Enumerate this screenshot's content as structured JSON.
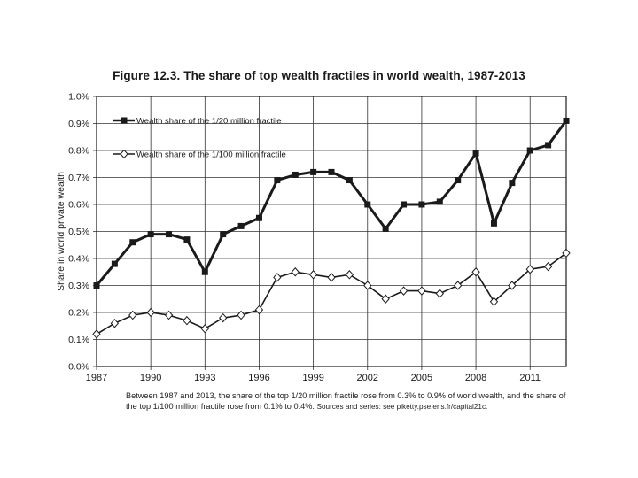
{
  "chart_data": {
    "type": "line",
    "title": "Figure 12.3. The share of top wealth fractiles in world wealth, 1987-2013",
    "xlabel": "",
    "ylabel": "Share in world private wealth",
    "x": [
      1987,
      1988,
      1989,
      1990,
      1991,
      1992,
      1993,
      1994,
      1995,
      1996,
      1997,
      1998,
      1999,
      2000,
      2001,
      2002,
      2003,
      2004,
      2005,
      2006,
      2007,
      2008,
      2009,
      2010,
      2011,
      2012,
      2013
    ],
    "xticks": [
      1987,
      1990,
      1993,
      1996,
      1999,
      2002,
      2005,
      2008,
      2011
    ],
    "xtick_labels": [
      "1987",
      "1990",
      "1993",
      "1996",
      "1999",
      "2002",
      "2005",
      "2008",
      "2011"
    ],
    "xlim": [
      1987,
      2013
    ],
    "ylim": [
      0,
      1.0
    ],
    "yticks": [
      0,
      0.1,
      0.2,
      0.3,
      0.4,
      0.5,
      0.6,
      0.7,
      0.8,
      0.9,
      1.0
    ],
    "ytick_labels": [
      "0.0%",
      "0.1%",
      "0.2%",
      "0.3%",
      "0.4%",
      "0.5%",
      "0.6%",
      "0.7%",
      "0.8%",
      "0.9%",
      "1.0%"
    ],
    "grid": true,
    "legend_position": "top-left",
    "series": [
      {
        "name": "Wealth share of the 1/20 million fractile",
        "marker": "square",
        "color": "#1a1a1a",
        "values": [
          0.3,
          0.38,
          0.46,
          0.49,
          0.49,
          0.47,
          0.35,
          0.49,
          0.52,
          0.55,
          0.69,
          0.71,
          0.72,
          0.72,
          0.69,
          0.6,
          0.51,
          0.6,
          0.6,
          0.61,
          0.69,
          0.79,
          0.53,
          0.68,
          0.8,
          0.82,
          0.91
        ]
      },
      {
        "name": "Wealth share of the 1/100 million fractile",
        "marker": "diamond",
        "color": "#1a1a1a",
        "values": [
          0.12,
          0.16,
          0.19,
          0.2,
          0.19,
          0.17,
          0.14,
          0.18,
          0.19,
          0.21,
          0.33,
          0.35,
          0.34,
          0.33,
          0.34,
          0.3,
          0.25,
          0.28,
          0.28,
          0.27,
          0.3,
          0.35,
          0.24,
          0.3,
          0.36,
          0.37,
          0.42
        ]
      }
    ],
    "caption": "Between 1987 and 2013, the share of the top 1/20 million fractile rose from 0.3% to 0.9% of world wealth, and the share of the top 1/100 million fractile rose from 0.1% to 0.4%.",
    "caption_sources": "Sources and series: see piketty.pse.ens.fr/capital21c."
  }
}
